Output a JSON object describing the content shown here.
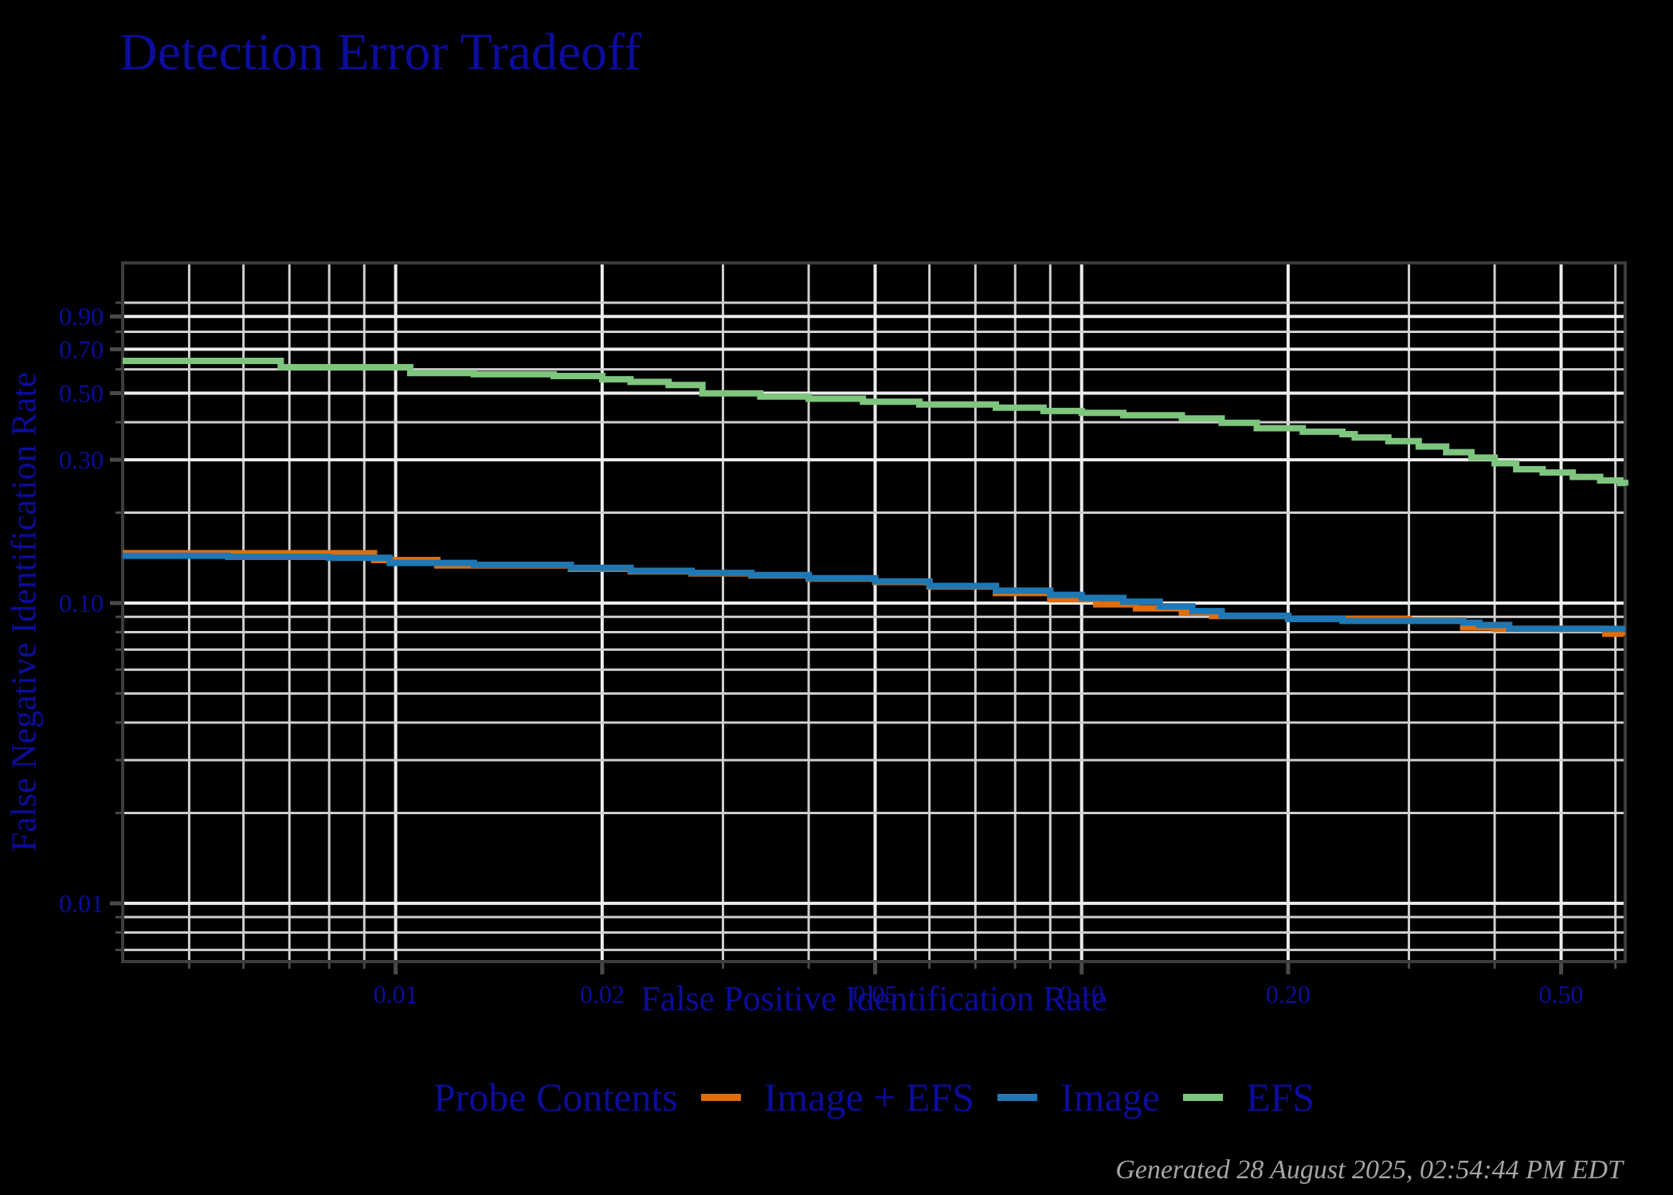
{
  "page": {
    "title": "Detection Error Tradeoff",
    "caption": "Generated 28 August 2025, 02:54:44 PM EDT",
    "background": "#000000"
  },
  "axes": {
    "x_label": "False Positive Identification Rate",
    "y_label": "False Negative Identification Rate"
  },
  "legend": {
    "title": "Probe Contents",
    "items": [
      {
        "label": "Image + EFS",
        "color": "#E06E0A"
      },
      {
        "label": "Image",
        "color": "#1F78B4"
      },
      {
        "label": "EFS",
        "color": "#7EC57E"
      }
    ]
  },
  "colors": {
    "text_navy": "#0C0C9C",
    "caption_gray": "#A6A6A6",
    "grid_minor": "#CFCFCF",
    "grid_major": "#EDEDED",
    "panel_border": "#3C3C3C",
    "tick": "#4A4A4A"
  },
  "chart_data": {
    "type": "line",
    "title": "Detection Error Tradeoff",
    "xlabel": "False Positive Identification Rate",
    "ylabel": "False Negative Identification Rate",
    "x_scale": "log",
    "y_scale": "log",
    "xlim": [
      0.004,
      0.62
    ],
    "ylim": [
      0.0064,
      1.357
    ],
    "grid": true,
    "legend_position": "bottom",
    "x_ticks": {
      "values": [
        0.01,
        0.02,
        0.05,
        0.1,
        0.2,
        0.5
      ],
      "labels": [
        "0.01",
        "0.02",
        "0.05",
        "0.10",
        "0.20",
        "0.50"
      ]
    },
    "y_ticks": {
      "values": [
        0.9,
        0.7,
        0.5,
        0.3,
        0.1,
        0.01
      ],
      "labels": [
        "0.90",
        "0.70",
        "0.50",
        "0.30",
        "0.10",
        "0.01"
      ]
    },
    "x_gridlines": [
      0.005,
      0.006,
      0.007,
      0.008,
      0.009,
      0.01,
      0.02,
      0.03,
      0.04,
      0.05,
      0.06,
      0.07,
      0.08,
      0.09,
      0.1,
      0.2,
      0.3,
      0.4,
      0.5,
      0.6
    ],
    "y_gridlines": [
      1.0,
      0.9,
      0.8,
      0.7,
      0.6,
      0.5,
      0.4,
      0.3,
      0.2,
      0.1,
      0.09,
      0.08,
      0.07,
      0.06,
      0.05,
      0.04,
      0.03,
      0.02,
      0.01,
      0.009,
      0.008,
      0.007
    ],
    "series": [
      {
        "name": "Image + EFS",
        "color": "#E06E0A",
        "points": [
          [
            0.004,
            0.1465
          ],
          [
            0.0093,
            0.139
          ],
          [
            0.0115,
            0.1335
          ],
          [
            0.018,
            0.13
          ],
          [
            0.022,
            0.1275
          ],
          [
            0.027,
            0.1255
          ],
          [
            0.033,
            0.1235
          ],
          [
            0.04,
            0.1205
          ],
          [
            0.05,
            0.1175
          ],
          [
            0.06,
            0.1135
          ],
          [
            0.075,
            0.108
          ],
          [
            0.09,
            0.103
          ],
          [
            0.105,
            0.099
          ],
          [
            0.12,
            0.096
          ],
          [
            0.14,
            0.093
          ],
          [
            0.155,
            0.0905
          ],
          [
            0.2,
            0.0885
          ],
          [
            0.3,
            0.0875
          ],
          [
            0.36,
            0.083
          ],
          [
            0.4,
            0.082
          ],
          [
            0.58,
            0.079
          ],
          [
            0.61,
            0.08
          ],
          [
            0.62,
            0.08
          ]
        ]
      },
      {
        "name": "Image",
        "color": "#1F78B4",
        "points": [
          [
            0.004,
            0.1437
          ],
          [
            0.0057,
            0.1425
          ],
          [
            0.008,
            0.1415
          ],
          [
            0.0098,
            0.136
          ],
          [
            0.013,
            0.134
          ],
          [
            0.018,
            0.131
          ],
          [
            0.022,
            0.128
          ],
          [
            0.027,
            0.126
          ],
          [
            0.033,
            0.124
          ],
          [
            0.04,
            0.121
          ],
          [
            0.05,
            0.118
          ],
          [
            0.06,
            0.114
          ],
          [
            0.075,
            0.11
          ],
          [
            0.09,
            0.1065
          ],
          [
            0.1,
            0.104
          ],
          [
            0.115,
            0.101
          ],
          [
            0.13,
            0.0975
          ],
          [
            0.145,
            0.094
          ],
          [
            0.16,
            0.0907
          ],
          [
            0.2,
            0.0885
          ],
          [
            0.24,
            0.0872
          ],
          [
            0.36,
            0.086
          ],
          [
            0.38,
            0.0845
          ],
          [
            0.42,
            0.082
          ],
          [
            0.62,
            0.082
          ]
        ]
      },
      {
        "name": "EFS",
        "color": "#7EC57E",
        "points": [
          [
            0.004,
            0.64
          ],
          [
            0.0068,
            0.61
          ],
          [
            0.0105,
            0.583
          ],
          [
            0.013,
            0.578
          ],
          [
            0.017,
            0.57
          ],
          [
            0.02,
            0.556
          ],
          [
            0.022,
            0.545
          ],
          [
            0.025,
            0.532
          ],
          [
            0.028,
            0.499
          ],
          [
            0.034,
            0.487
          ],
          [
            0.04,
            0.479
          ],
          [
            0.048,
            0.468
          ],
          [
            0.058,
            0.458
          ],
          [
            0.075,
            0.447
          ],
          [
            0.088,
            0.436
          ],
          [
            0.1,
            0.43
          ],
          [
            0.115,
            0.422
          ],
          [
            0.14,
            0.412
          ],
          [
            0.16,
            0.398
          ],
          [
            0.18,
            0.382
          ],
          [
            0.21,
            0.372
          ],
          [
            0.24,
            0.365
          ],
          [
            0.25,
            0.356
          ],
          [
            0.28,
            0.346
          ],
          [
            0.31,
            0.332
          ],
          [
            0.34,
            0.318
          ],
          [
            0.37,
            0.305
          ],
          [
            0.4,
            0.292
          ],
          [
            0.43,
            0.279
          ],
          [
            0.47,
            0.272
          ],
          [
            0.52,
            0.263
          ],
          [
            0.57,
            0.256
          ],
          [
            0.61,
            0.251
          ],
          [
            0.62,
            0.246
          ]
        ]
      }
    ]
  }
}
